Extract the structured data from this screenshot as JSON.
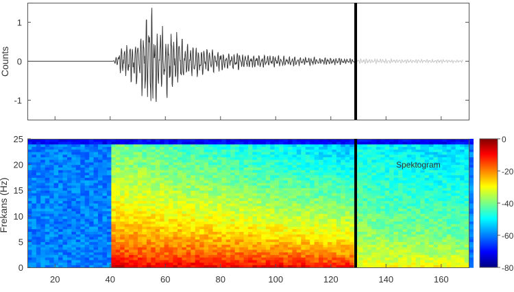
{
  "chart_data": [
    {
      "type": "line",
      "ylabel": "Counts",
      "xlim": [
        10,
        170
      ],
      "ylim": [
        -1.5,
        1.5
      ],
      "yticks": [
        1,
        0,
        -1
      ],
      "grid": false,
      "series": [
        {
          "color": "#3a3a3a",
          "envelope": [
            {
              "x": 10,
              "amp": 0.0
            },
            {
              "x": 41,
              "amp": 0.0
            },
            {
              "x": 42,
              "amp": 0.1
            },
            {
              "x": 44,
              "amp": 0.35
            },
            {
              "x": 48,
              "amp": 0.6
            },
            {
              "x": 52,
              "amp": 1.05
            },
            {
              "x": 54,
              "amp": 1.35
            },
            {
              "x": 56,
              "amp": 1.25
            },
            {
              "x": 60,
              "amp": 1.05
            },
            {
              "x": 64,
              "amp": 0.75
            },
            {
              "x": 68,
              "amp": 0.55
            },
            {
              "x": 74,
              "amp": 0.38
            },
            {
              "x": 80,
              "amp": 0.28
            },
            {
              "x": 90,
              "amp": 0.2
            },
            {
              "x": 100,
              "amp": 0.15
            },
            {
              "x": 110,
              "amp": 0.12
            },
            {
              "x": 120,
              "amp": 0.1
            },
            {
              "x": 129,
              "amp": 0.07
            }
          ]
        },
        {
          "color": "#c8c8c8",
          "envelope": [
            {
              "x": 129,
              "amp": 0.07
            },
            {
              "x": 150,
              "amp": 0.05
            },
            {
              "x": 168,
              "amp": 0.04
            }
          ]
        }
      ],
      "markers": [
        {
          "x": 129,
          "color": "#000000"
        }
      ]
    },
    {
      "type": "heatmap",
      "ylabel": "Frekans (Hz)",
      "annotation": "Spektogram",
      "xlim": [
        10,
        170
      ],
      "ylim": [
        0,
        25
      ],
      "xticks": [
        20,
        40,
        60,
        80,
        100,
        120,
        140,
        160
      ],
      "yticks": [
        25,
        20,
        15,
        10,
        5,
        0
      ],
      "colorbar": {
        "min": -80,
        "max": 0,
        "ticks": [
          "0",
          "-20",
          "-40",
          "-60",
          "-80"
        ],
        "colormap": "jet"
      },
      "regions": [
        {
          "x_range": [
            10,
            41
          ],
          "level_db": -60
        },
        {
          "x_range": [
            41,
            129
          ],
          "level_db_low_freq": -5,
          "level_db_high_freq": -42
        },
        {
          "x_range": [
            129,
            170
          ],
          "level_db_low_freq": -28,
          "level_db_high_freq": -50
        }
      ],
      "markers": [
        {
          "x": 129,
          "color": "#000000"
        }
      ]
    }
  ]
}
